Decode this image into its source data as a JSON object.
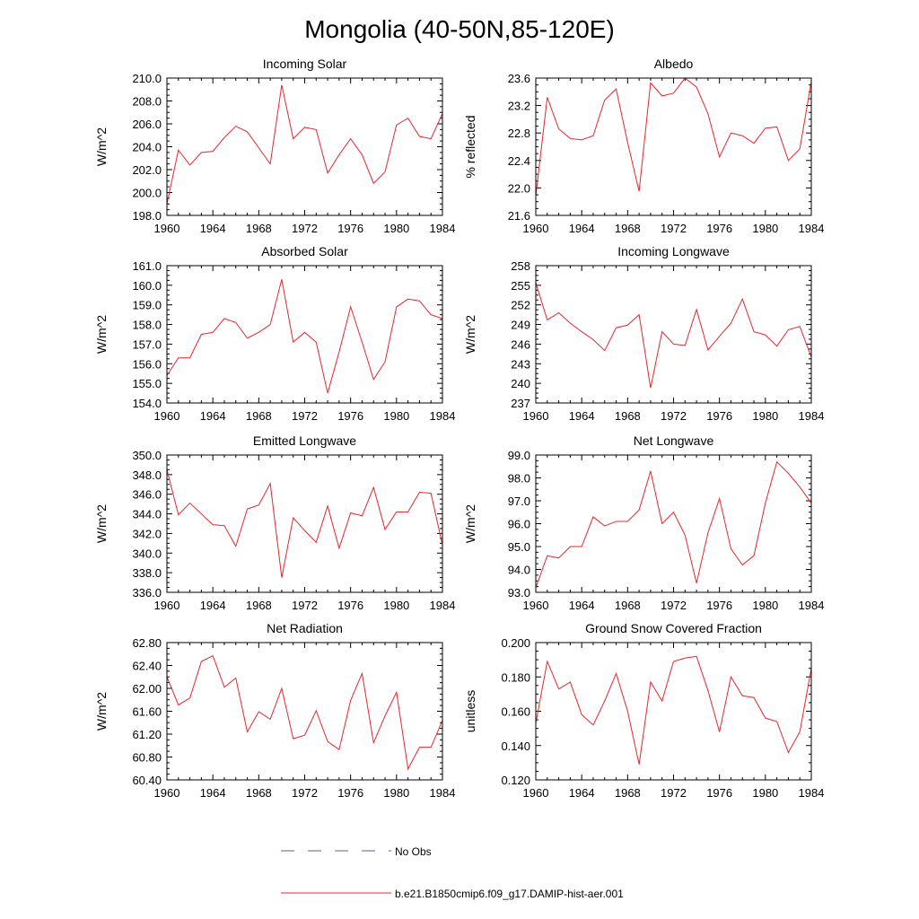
{
  "figure": {
    "title": "Mongolia (40-50N,85-120E)"
  },
  "legend": {
    "entries": [
      {
        "label": "No Obs",
        "color": "#5b5bb0",
        "style": "dashed"
      },
      {
        "label": "b.e21.B1850cmip6.f09_g17.DAMIP-hist-aer.001",
        "color": "#e8262b",
        "style": "solid"
      }
    ]
  },
  "chart_data": [
    {
      "type": "line",
      "title": "Incoming Solar",
      "ylabel": "W/m^2",
      "xlim": [
        1960,
        1984
      ],
      "ylim": [
        198.0,
        210.0
      ],
      "xticks": [
        "1960",
        "1964",
        "1968",
        "1972",
        "1976",
        "1980",
        "1984"
      ],
      "yticks": [
        "198.0",
        "200.0",
        "202.0",
        "204.0",
        "206.0",
        "208.0",
        "210.0"
      ],
      "series": [
        {
          "color": "#e8262b",
          "x": [
            1960,
            1961,
            1962,
            1963,
            1964,
            1965,
            1966,
            1967,
            1968,
            1969,
            1970,
            1971,
            1972,
            1973,
            1974,
            1975,
            1976,
            1977,
            1978,
            1979,
            1980,
            1981,
            1982,
            1983,
            1984
          ],
          "y": [
            199.0,
            203.7,
            202.4,
            203.5,
            203.6,
            204.8,
            205.8,
            205.3,
            203.9,
            202.5,
            209.4,
            204.7,
            205.7,
            205.5,
            201.7,
            203.3,
            204.7,
            203.3,
            200.8,
            201.8,
            205.9,
            206.5,
            204.9,
            204.7,
            206.9
          ]
        }
      ]
    },
    {
      "type": "line",
      "title": "Albedo",
      "ylabel": "% reflected",
      "xlim": [
        1960,
        1984
      ],
      "ylim": [
        21.6,
        23.6
      ],
      "xticks": [
        "1960",
        "1964",
        "1968",
        "1972",
        "1976",
        "1980",
        "1984"
      ],
      "yticks": [
        "21.6",
        "22.0",
        "22.4",
        "22.8",
        "23.2",
        "23.6"
      ],
      "series": [
        {
          "color": "#e8262b",
          "x": [
            1960,
            1961,
            1962,
            1963,
            1964,
            1965,
            1966,
            1967,
            1968,
            1969,
            1970,
            1971,
            1972,
            1973,
            1974,
            1975,
            1976,
            1977,
            1978,
            1979,
            1980,
            1981,
            1982,
            1983,
            1984
          ],
          "y": [
            21.88,
            23.32,
            22.86,
            22.72,
            22.7,
            22.76,
            23.28,
            23.44,
            22.66,
            21.95,
            23.53,
            23.34,
            23.38,
            23.6,
            23.47,
            23.08,
            22.45,
            22.8,
            22.76,
            22.65,
            22.87,
            22.89,
            22.4,
            22.57,
            23.55
          ]
        }
      ]
    },
    {
      "type": "line",
      "title": "Absorbed Solar",
      "ylabel": "W/m^2",
      "xlim": [
        1960,
        1984
      ],
      "ylim": [
        154.0,
        161.0
      ],
      "xticks": [
        "1960",
        "1964",
        "1968",
        "1972",
        "1976",
        "1980",
        "1984"
      ],
      "yticks": [
        "154.0",
        "155.0",
        "156.0",
        "157.0",
        "158.0",
        "159.0",
        "160.0",
        "161.0"
      ],
      "series": [
        {
          "color": "#e8262b",
          "x": [
            1960,
            1961,
            1962,
            1963,
            1964,
            1965,
            1966,
            1967,
            1968,
            1969,
            1970,
            1971,
            1972,
            1973,
            1974,
            1975,
            1976,
            1977,
            1978,
            1979,
            1980,
            1981,
            1982,
            1983,
            1984
          ],
          "y": [
            155.4,
            156.3,
            156.3,
            157.5,
            157.6,
            158.3,
            158.1,
            157.3,
            157.6,
            158.0,
            160.3,
            157.1,
            157.6,
            157.1,
            154.5,
            156.6,
            158.9,
            157.1,
            155.2,
            156.1,
            158.9,
            159.3,
            159.2,
            158.5,
            158.3
          ]
        }
      ]
    },
    {
      "type": "line",
      "title": "Incoming Longwave",
      "ylabel": "W/m^2",
      "xlim": [
        1960,
        1984
      ],
      "ylim": [
        237,
        258
      ],
      "xticks": [
        "1960",
        "1964",
        "1968",
        "1972",
        "1976",
        "1980",
        "1984"
      ],
      "yticks": [
        "237",
        "240",
        "243",
        "246",
        "249",
        "252",
        "255",
        "258"
      ],
      "series": [
        {
          "color": "#e8262b",
          "x": [
            1960,
            1961,
            1962,
            1963,
            1964,
            1965,
            1966,
            1967,
            1968,
            1969,
            1970,
            1971,
            1972,
            1973,
            1974,
            1975,
            1976,
            1977,
            1978,
            1979,
            1980,
            1981,
            1982,
            1983,
            1984
          ],
          "y": [
            255.4,
            249.7,
            250.8,
            249.2,
            247.9,
            246.7,
            245.0,
            248.5,
            248.9,
            250.5,
            239.3,
            247.9,
            246.0,
            245.8,
            251.3,
            245.1,
            247.2,
            249.2,
            252.9,
            247.9,
            247.4,
            245.7,
            248.2,
            248.7,
            244.0
          ]
        }
      ]
    },
    {
      "type": "line",
      "title": "Emitted Longwave",
      "ylabel": "W/m^2",
      "xlim": [
        1960,
        1984
      ],
      "ylim": [
        336.0,
        350.0
      ],
      "xticks": [
        "1960",
        "1964",
        "1968",
        "1972",
        "1976",
        "1980",
        "1984"
      ],
      "yticks": [
        "336.0",
        "338.0",
        "340.0",
        "342.0",
        "344.0",
        "346.0",
        "348.0",
        "350.0"
      ],
      "series": [
        {
          "color": "#e8262b",
          "x": [
            1960,
            1961,
            1962,
            1963,
            1964,
            1965,
            1966,
            1967,
            1968,
            1969,
            1970,
            1971,
            1972,
            1973,
            1974,
            1975,
            1976,
            1977,
            1978,
            1979,
            1980,
            1981,
            1982,
            1983,
            1984
          ],
          "y": [
            348.5,
            343.9,
            345.1,
            344.0,
            342.9,
            342.8,
            340.7,
            344.5,
            344.9,
            347.1,
            337.5,
            343.6,
            342.3,
            341.1,
            344.8,
            340.5,
            344.1,
            343.8,
            346.7,
            342.4,
            344.2,
            344.2,
            346.2,
            346.1,
            340.8
          ]
        }
      ]
    },
    {
      "type": "line",
      "title": "Net Longwave",
      "ylabel": "W/m^2",
      "xlim": [
        1960,
        1984
      ],
      "ylim": [
        93.0,
        99.0
      ],
      "xticks": [
        "1960",
        "1964",
        "1968",
        "1972",
        "1976",
        "1980",
        "1984"
      ],
      "yticks": [
        "93.0",
        "94.0",
        "95.0",
        "96.0",
        "97.0",
        "98.0",
        "99.0"
      ],
      "series": [
        {
          "color": "#e8262b",
          "x": [
            1960,
            1961,
            1962,
            1963,
            1964,
            1965,
            1966,
            1967,
            1968,
            1969,
            1970,
            1971,
            1972,
            1973,
            1974,
            1975,
            1976,
            1977,
            1978,
            1979,
            1980,
            1981,
            1982,
            1983,
            1984
          ],
          "y": [
            93.2,
            94.6,
            94.5,
            95.0,
            95.0,
            96.3,
            95.9,
            96.1,
            96.1,
            96.6,
            98.3,
            96.0,
            96.5,
            95.5,
            93.4,
            95.6,
            97.1,
            94.9,
            94.2,
            94.6,
            96.9,
            98.7,
            98.2,
            97.6,
            96.9
          ]
        }
      ]
    },
    {
      "type": "line",
      "title": "Net Radiation",
      "ylabel": "W/m^2",
      "xlim": [
        1960,
        1984
      ],
      "ylim": [
        60.4,
        62.8
      ],
      "xticks": [
        "1960",
        "1964",
        "1968",
        "1972",
        "1976",
        "1980",
        "1984"
      ],
      "yticks": [
        "60.40",
        "60.80",
        "61.20",
        "61.60",
        "62.00",
        "62.40",
        "62.80"
      ],
      "series": [
        {
          "color": "#e8262b",
          "x": [
            1960,
            1961,
            1962,
            1963,
            1964,
            1965,
            1966,
            1967,
            1968,
            1969,
            1970,
            1971,
            1972,
            1973,
            1974,
            1975,
            1976,
            1977,
            1978,
            1979,
            1980,
            1981,
            1982,
            1983,
            1984
          ],
          "y": [
            62.2,
            61.71,
            61.83,
            62.47,
            62.57,
            62.02,
            62.18,
            61.24,
            61.59,
            61.46,
            62.0,
            61.12,
            61.18,
            61.61,
            61.07,
            60.93,
            61.79,
            62.26,
            61.05,
            61.52,
            61.93,
            60.59,
            60.97,
            60.97,
            61.44
          ]
        }
      ]
    },
    {
      "type": "line",
      "title": "Ground Snow Covered Fraction",
      "ylabel": "unitless",
      "xlim": [
        1960,
        1984
      ],
      "ylim": [
        0.12,
        0.2
      ],
      "xticks": [
        "1960",
        "1964",
        "1968",
        "1972",
        "1976",
        "1980",
        "1984"
      ],
      "yticks": [
        "0.120",
        "0.140",
        "0.160",
        "0.180",
        "0.200"
      ],
      "series": [
        {
          "color": "#e8262b",
          "x": [
            1960,
            1961,
            1962,
            1963,
            1964,
            1965,
            1966,
            1967,
            1968,
            1969,
            1970,
            1971,
            1972,
            1973,
            1974,
            1975,
            1976,
            1977,
            1978,
            1979,
            1980,
            1981,
            1982,
            1983,
            1984
          ],
          "y": [
            0.153,
            0.189,
            0.173,
            0.177,
            0.158,
            0.152,
            0.166,
            0.182,
            0.16,
            0.129,
            0.177,
            0.166,
            0.189,
            0.191,
            0.192,
            0.172,
            0.148,
            0.18,
            0.169,
            0.168,
            0.156,
            0.154,
            0.136,
            0.148,
            0.185
          ]
        }
      ]
    }
  ]
}
